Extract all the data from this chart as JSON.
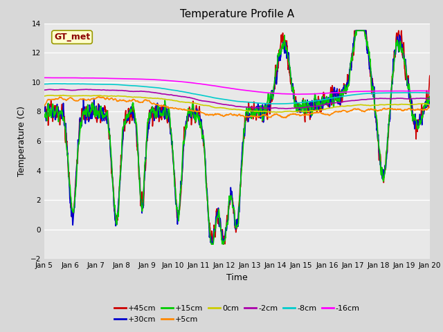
{
  "title": "Temperature Profile A",
  "xlabel": "Time",
  "ylabel": "Temperature (C)",
  "ylim": [
    -2,
    14
  ],
  "yticks": [
    -2,
    0,
    2,
    4,
    6,
    8,
    10,
    12,
    14
  ],
  "xtick_labels": [
    "Jan 5",
    "Jan 6",
    "Jan 7",
    "Jan 8",
    "Jan 9",
    "Jan 10",
    "Jan 11",
    "Jan 12",
    "Jan 13",
    "Jan 14",
    "Jan 15",
    "Jan 16",
    "Jan 17",
    "Jan 18",
    "Jan 19",
    "Jan 20"
  ],
  "series": [
    {
      "label": "+45cm",
      "color": "#cc0000",
      "lw": 1.2
    },
    {
      "label": "+30cm",
      "color": "#0000cc",
      "lw": 1.2
    },
    {
      "label": "+15cm",
      "color": "#00cc00",
      "lw": 1.2
    },
    {
      "label": "+5cm",
      "color": "#ff8800",
      "lw": 1.2
    },
    {
      "label": "0cm",
      "color": "#cccc00",
      "lw": 1.2
    },
    {
      "label": "-2cm",
      "color": "#aa00aa",
      "lw": 1.2
    },
    {
      "label": "-8cm",
      "color": "#00cccc",
      "lw": 1.2
    },
    {
      "label": "-16cm",
      "color": "#ff00ff",
      "lw": 1.2
    }
  ],
  "legend_label": "GT_met",
  "legend_bg": "#ffffcc",
  "legend_text_color": "#8b0000",
  "fig_bg": "#d8d8d8",
  "plot_bg": "#e8e8e8"
}
